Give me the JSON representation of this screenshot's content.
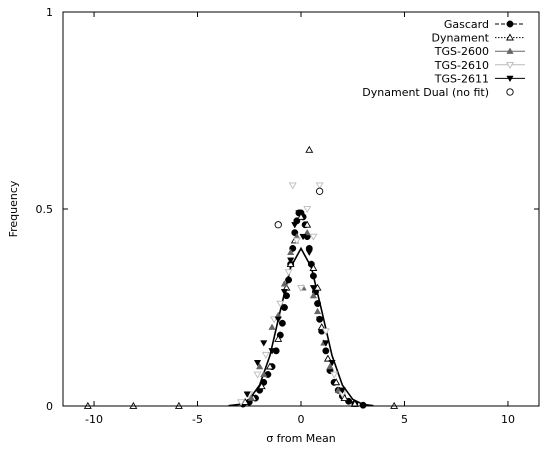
{
  "chart_data": {
    "type": "scatter",
    "xlabel": "σ from Mean",
    "ylabel": "Frequency",
    "xlim": [
      -11.5,
      11.5
    ],
    "ylim": [
      0,
      1
    ],
    "x_ticks": [
      -10,
      -5,
      0,
      5,
      10
    ],
    "y_ticks": [
      0,
      0.5,
      1
    ],
    "y_tick_labels": [
      "0",
      "0.5",
      "1"
    ],
    "legend_position": "top-right",
    "grid": false,
    "series": [
      {
        "name": "Gascard",
        "color": "#000000",
        "marker": "circle-filled",
        "line": "dashed",
        "points": [
          [
            -2.8,
            0.005
          ],
          [
            -2.5,
            0.01
          ],
          [
            -2.2,
            0.02
          ],
          [
            -2.0,
            0.04
          ],
          [
            -1.8,
            0.06
          ],
          [
            -1.6,
            0.08
          ],
          [
            -1.4,
            0.1
          ],
          [
            -1.2,
            0.14
          ],
          [
            -1.0,
            0.18
          ],
          [
            -0.9,
            0.21
          ],
          [
            -0.8,
            0.25
          ],
          [
            -0.7,
            0.28
          ],
          [
            -0.6,
            0.32
          ],
          [
            -0.5,
            0.36
          ],
          [
            -0.4,
            0.4
          ],
          [
            -0.3,
            0.44
          ],
          [
            -0.2,
            0.47
          ],
          [
            -0.1,
            0.49
          ],
          [
            0.0,
            0.49
          ],
          [
            0.1,
            0.48
          ],
          [
            0.2,
            0.46
          ],
          [
            0.3,
            0.43
          ],
          [
            0.4,
            0.4
          ],
          [
            0.5,
            0.36
          ],
          [
            0.6,
            0.33
          ],
          [
            0.7,
            0.29
          ],
          [
            0.8,
            0.26
          ],
          [
            0.9,
            0.22
          ],
          [
            1.0,
            0.19
          ],
          [
            1.2,
            0.14
          ],
          [
            1.4,
            0.09
          ],
          [
            1.6,
            0.06
          ],
          [
            1.8,
            0.04
          ],
          [
            2.0,
            0.025
          ],
          [
            2.3,
            0.012
          ],
          [
            2.6,
            0.006
          ],
          [
            3.0,
            0.002
          ]
        ],
        "curve": [
          [
            -3.5,
            0.001
          ],
          [
            -3.0,
            0.004
          ],
          [
            -2.5,
            0.017
          ],
          [
            -2.0,
            0.053
          ],
          [
            -1.5,
            0.128
          ],
          [
            -1.0,
            0.242
          ],
          [
            -0.5,
            0.352
          ],
          [
            0.0,
            0.4
          ],
          [
            0.5,
            0.352
          ],
          [
            1.0,
            0.242
          ],
          [
            1.5,
            0.128
          ],
          [
            2.0,
            0.053
          ],
          [
            2.5,
            0.017
          ],
          [
            3.0,
            0.004
          ],
          [
            3.5,
            0.001
          ]
        ]
      },
      {
        "name": "Dynament",
        "color": "#000000",
        "marker": "triangle-up-open",
        "line": "dotted",
        "points": [
          [
            -10.3,
            0
          ],
          [
            -8.1,
            0
          ],
          [
            -5.9,
            0
          ],
          [
            -2.7,
            0.01
          ],
          [
            -2.3,
            0.02
          ],
          [
            -1.9,
            0.05
          ],
          [
            -1.5,
            0.1
          ],
          [
            -1.1,
            0.17
          ],
          [
            -0.7,
            0.3
          ],
          [
            -0.5,
            0.36
          ],
          [
            -0.3,
            0.42
          ],
          [
            0.0,
            0.48
          ],
          [
            0.3,
            0.46
          ],
          [
            0.4,
            0.65
          ],
          [
            0.6,
            0.35
          ],
          [
            0.8,
            0.3
          ],
          [
            1.0,
            0.2
          ],
          [
            1.3,
            0.12
          ],
          [
            1.7,
            0.06
          ],
          [
            2.1,
            0.02
          ],
          [
            2.6,
            0.005
          ],
          [
            4.5,
            0
          ]
        ]
      },
      {
        "name": "TGS-2600",
        "color": "#666666",
        "marker": "triangle-up-filled",
        "line": "solid",
        "points": [
          [
            -2.4,
            0.02
          ],
          [
            -2.0,
            0.1
          ],
          [
            -1.8,
            0.08
          ],
          [
            -1.4,
            0.2
          ],
          [
            -1.1,
            0.23
          ],
          [
            -0.8,
            0.31
          ],
          [
            -0.5,
            0.39
          ],
          [
            -0.2,
            0.43
          ],
          [
            0.1,
            0.3
          ],
          [
            0.3,
            0.44
          ],
          [
            0.6,
            0.28
          ],
          [
            0.8,
            0.24
          ],
          [
            1.1,
            0.16
          ],
          [
            1.4,
            0.1
          ],
          [
            1.8,
            0.04
          ]
        ]
      },
      {
        "name": "TGS-2610",
        "color": "#bbbbbb",
        "marker": "triangle-down-open",
        "line": "solid",
        "points": [
          [
            -2.9,
            0.01
          ],
          [
            -2.5,
            0.03
          ],
          [
            -2.1,
            0.08
          ],
          [
            -1.7,
            0.13
          ],
          [
            -1.3,
            0.22
          ],
          [
            -1.0,
            0.26
          ],
          [
            -0.6,
            0.34
          ],
          [
            -0.4,
            0.56
          ],
          [
            -0.2,
            0.42
          ],
          [
            0.0,
            0.3
          ],
          [
            0.3,
            0.5
          ],
          [
            0.6,
            0.43
          ],
          [
            0.9,
            0.56
          ],
          [
            1.2,
            0.19
          ],
          [
            1.6,
            0.08
          ],
          [
            2.0,
            0.03
          ]
        ]
      },
      {
        "name": "TGS-2611",
        "color": "#000000",
        "marker": "triangle-down-filled",
        "line": "solid",
        "points": [
          [
            -2.6,
            0.03
          ],
          [
            -2.1,
            0.11
          ],
          [
            -1.8,
            0.16
          ],
          [
            -1.4,
            0.14
          ],
          [
            -1.1,
            0.22
          ],
          [
            -0.8,
            0.29
          ],
          [
            -0.5,
            0.37
          ],
          [
            -0.3,
            0.46
          ],
          [
            -0.1,
            0.49
          ],
          [
            0.1,
            0.43
          ],
          [
            0.4,
            0.39
          ],
          [
            0.6,
            0.3
          ],
          [
            0.9,
            0.22
          ],
          [
            1.2,
            0.16
          ],
          [
            1.5,
            0.11
          ],
          [
            2.0,
            0.04
          ]
        ]
      },
      {
        "name": "Dynament Dual (no fit)",
        "color": "#000000",
        "marker": "circle-open",
        "line": "none",
        "points": [
          [
            -1.1,
            0.46
          ],
          [
            0.9,
            0.545
          ]
        ]
      }
    ]
  }
}
